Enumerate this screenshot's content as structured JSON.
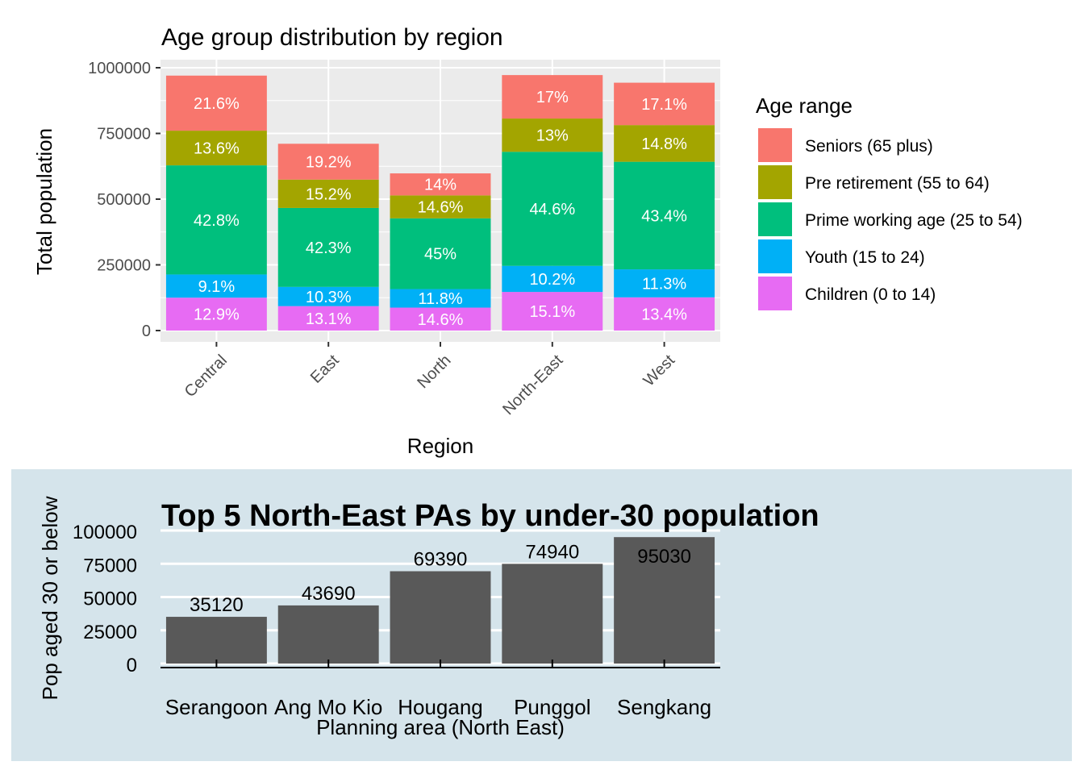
{
  "chart_data": [
    {
      "type": "bar",
      "stacked": true,
      "title": "Age group distribution by region",
      "xlabel": "Region",
      "ylabel": "Total population",
      "ylim": [
        0,
        1000000
      ],
      "yticks": [
        "0",
        "250000",
        "500000",
        "750000",
        "1000000"
      ],
      "grid": true,
      "categories": [
        "Central",
        "East",
        "North",
        "North-East",
        "West"
      ],
      "totals": [
        970000,
        710000,
        598000,
        973000,
        943000
      ],
      "legend": {
        "title": "Age range",
        "position": "right"
      },
      "series": [
        {
          "name": "Children (0 to 14)",
          "color": "#E76BF3",
          "share": [
            12.9,
            13.1,
            14.6,
            15.1,
            13.4
          ],
          "labels": [
            "12.9%",
            "13.1%",
            "14.6%",
            "15.1%",
            "13.4%"
          ]
        },
        {
          "name": "Youth (15 to 24)",
          "color": "#00B0F6",
          "share": [
            9.1,
            10.3,
            11.8,
            10.2,
            11.3
          ],
          "labels": [
            "9.1%",
            "10.3%",
            "11.8%",
            "10.2%",
            "11.3%"
          ]
        },
        {
          "name": "Prime working age (25 to 54)",
          "color": "#00BF7D",
          "share": [
            42.8,
            42.3,
            45,
            44.6,
            43.4
          ],
          "labels": [
            "42.8%",
            "42.3%",
            "45%",
            "44.6%",
            "43.4%"
          ]
        },
        {
          "name": "Pre retirement (55 to 64)",
          "color": "#A3A500",
          "share": [
            13.6,
            15.2,
            14.6,
            13,
            14.8
          ],
          "labels": [
            "13.6%",
            "15.2%",
            "14.6%",
            "13%",
            "14.8%"
          ]
        },
        {
          "name": "Seniors (65 plus)",
          "color": "#F8766D",
          "share": [
            21.6,
            19.2,
            14,
            17,
            17.1
          ],
          "labels": [
            "21.6%",
            "19.2%",
            "14%",
            "17%",
            "17.1%"
          ]
        }
      ]
    },
    {
      "type": "bar",
      "title": "Top 5 North-East PAs by under-30 population",
      "xlabel": "Planning area (North East)",
      "ylabel": "Pop aged 30 or below",
      "ylim": [
        0,
        100000
      ],
      "yticks": [
        "0",
        "25000",
        "50000",
        "75000",
        "100000"
      ],
      "grid": true,
      "background": "#D5E4EB",
      "bar_color": "#595959",
      "categories": [
        "Serangoon",
        "Ang Mo Kio",
        "Hougang",
        "Punggol",
        "Sengkang"
      ],
      "values": [
        35120,
        43690,
        69390,
        74940,
        95030
      ],
      "value_labels": [
        "35120",
        "43690",
        "69390",
        "74940",
        "95030"
      ]
    }
  ]
}
